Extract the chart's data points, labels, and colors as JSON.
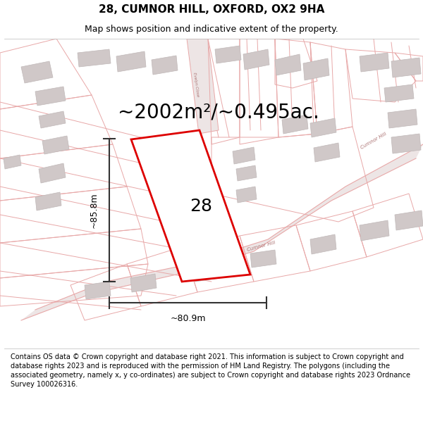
{
  "title": "28, CUMNOR HILL, OXFORD, OX2 9HA",
  "subtitle": "Map shows position and indicative extent of the property.",
  "area_label": "~2002m²/~0.495ac.",
  "property_number": "28",
  "dim_height": "~85.8m",
  "dim_width": "~80.9m",
  "map_bg": "#f7f3f3",
  "road_color": "#e8a8a8",
  "lot_color": "#e8a8a8",
  "building_color": "#d0c8c8",
  "building_edge": "#c0b8b8",
  "property_outline_color": "#dd0000",
  "dim_color": "#333333",
  "footer_text": "Contains OS data © Crown copyright and database right 2021. This information is subject to Crown copyright and database rights 2023 and is reproduced with the permission of HM Land Registry. The polygons (including the associated geometry, namely x, y co-ordinates) are subject to Crown copyright and database rights 2023 Ordnance Survey 100026316.",
  "title_fontsize": 11,
  "subtitle_fontsize": 9,
  "area_fontsize": 20,
  "number_fontsize": 18,
  "dim_fontsize": 9,
  "footer_fontsize": 7,
  "road_lw": 0.8,
  "lot_lw": 0.7
}
